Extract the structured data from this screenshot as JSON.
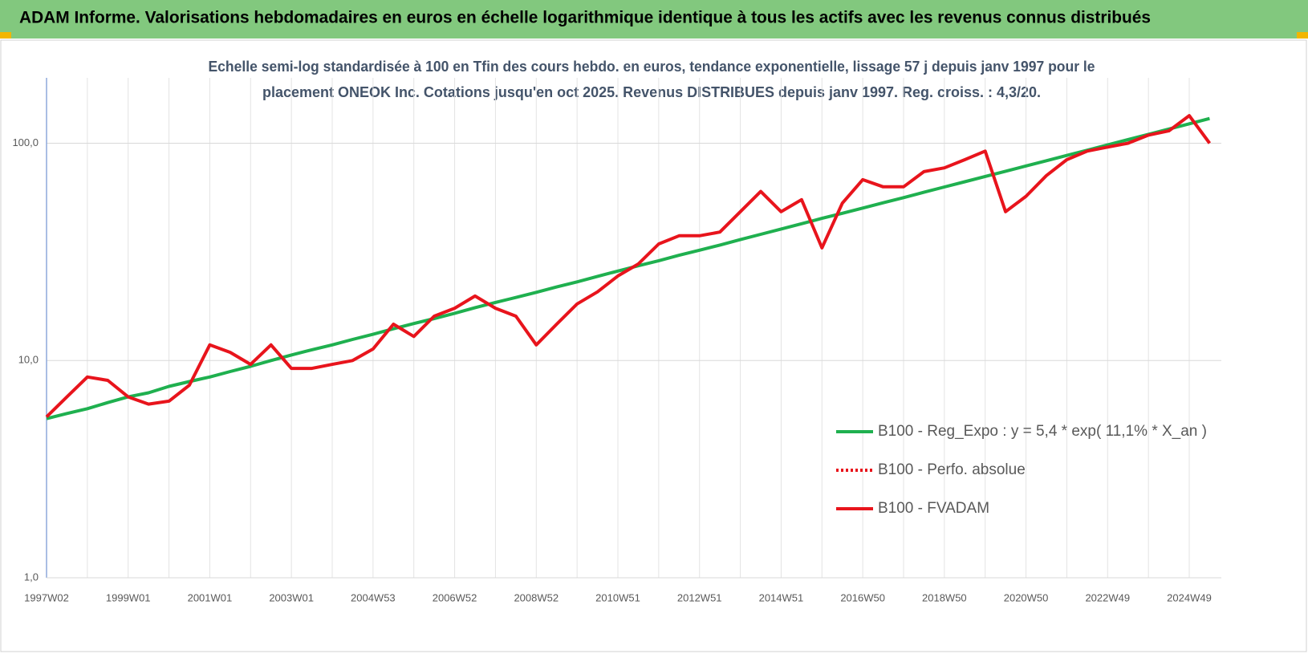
{
  "header": {
    "title": "ADAM Informe. Valorisations hebdomadaires en euros en échelle logarithmique identique à tous les actifs avec les revenus connus distribués"
  },
  "chart_data": {
    "type": "line",
    "subtitle": [
      "Echelle semi-log standardisée à 100 en Tfin des cours hebdo. en euros, tendance exponentielle, lissage 57 j depuis janv 1997 pour le",
      "placement ONEOK Inc.  Cotations jusqu'en oct 2025.  Revenus DISTRIBUES depuis janv 1997.  Reg. croiss. : 4,3/20."
    ],
    "log_scale": true,
    "grid": true,
    "legend": "right",
    "ylim": [
      1,
      200
    ],
    "yticks": [
      {
        "value": 1,
        "label": "1,0"
      },
      {
        "value": 10,
        "label": "10,0"
      },
      {
        "value": 100,
        "label": "100,0"
      }
    ],
    "categories": [
      "1997W02",
      null,
      null,
      null,
      "1999W01",
      null,
      null,
      null,
      "2001W01",
      null,
      null,
      null,
      "2003W01",
      null,
      null,
      null,
      "2004W53",
      null,
      null,
      null,
      "2006W52",
      null,
      null,
      null,
      "2008W52",
      null,
      null,
      null,
      "2010W51",
      null,
      null,
      null,
      "2012W51",
      null,
      null,
      null,
      "2014W51",
      null,
      null,
      null,
      "2016W50",
      null,
      null,
      null,
      "2018W50",
      null,
      null,
      null,
      "2020W50",
      null,
      null,
      null,
      "2022W49",
      null,
      null,
      null,
      "2024W49",
      null
    ],
    "series": [
      {
        "name": "B100 - Reg_Expo : y = 5,4 * exp( 11,1% *  X_an )",
        "color": "#1fb04f",
        "dash": "solid",
        "values": [
          5.4,
          5.7,
          6.0,
          6.4,
          6.8,
          7.1,
          7.6,
          8.0,
          8.4,
          8.9,
          9.4,
          10.0,
          10.6,
          11.2,
          11.8,
          12.5,
          13.2,
          14.0,
          14.8,
          15.6,
          16.5,
          17.5,
          18.5,
          19.5,
          20.6,
          21.8,
          23.0,
          24.4,
          25.8,
          27.3,
          28.8,
          30.5,
          32.2,
          34.0,
          36.0,
          38.1,
          40.3,
          42.6,
          45.1,
          47.6,
          50.3,
          53.2,
          56.2,
          59.5,
          62.9,
          66.5,
          70.3,
          74.3,
          78.6,
          83.1,
          87.9,
          92.9,
          98.3,
          103.9,
          109.9,
          116.2,
          122.9,
          130.0
        ]
      },
      {
        "name": "B100 - Perfo. absolue",
        "color": "#e8141c",
        "dash": "dotted",
        "values": [
          null,
          null,
          null,
          null,
          null,
          null,
          null,
          null,
          null,
          null,
          null,
          null,
          null,
          null,
          null,
          null,
          null,
          null,
          null,
          null,
          null,
          null,
          null,
          null,
          null,
          null,
          null,
          null,
          null,
          null,
          null,
          null,
          null,
          null,
          null,
          null,
          null,
          null,
          null,
          null,
          null,
          null,
          null,
          null,
          null,
          null,
          null,
          null,
          null,
          null,
          null,
          null,
          null,
          null,
          null,
          null,
          null,
          null
        ]
      },
      {
        "name": "B100 - FVADAM",
        "color": "#e8141c",
        "dash": "solid",
        "values": [
          5.5,
          6.8,
          8.4,
          8.1,
          6.8,
          6.3,
          6.5,
          7.7,
          11.8,
          10.9,
          9.6,
          11.8,
          9.2,
          9.2,
          9.6,
          10.0,
          11.3,
          14.7,
          12.9,
          16.0,
          17.4,
          19.8,
          17.4,
          16.0,
          11.8,
          14.7,
          18.2,
          20.7,
          24.5,
          27.8,
          34.4,
          37.5,
          37.5,
          39.0,
          48.4,
          60.0,
          48.4,
          55.0,
          33.0,
          53.0,
          68.0,
          63.0,
          63.0,
          74.0,
          77.0,
          84.0,
          92.0,
          48.4,
          57.0,
          71.0,
          84.0,
          92.0,
          96.0,
          100.0,
          109.0,
          114.0,
          134.0,
          100.0
        ]
      }
    ]
  }
}
